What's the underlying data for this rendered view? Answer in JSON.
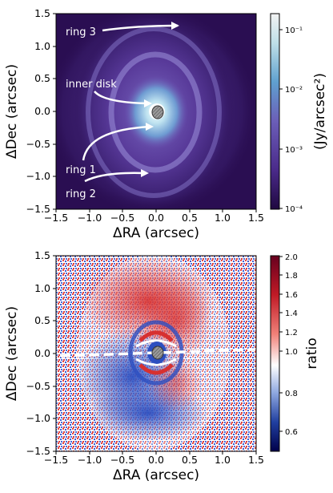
{
  "chart_data": [
    {
      "type": "heatmap",
      "xlabel": "ΔRA (arcsec)",
      "ylabel": "ΔDec (arcsec)",
      "xlim": [
        -1.5,
        1.5
      ],
      "ylim": [
        -1.5,
        1.5
      ],
      "xticks": [
        "−1.5",
        "−1.0",
        "−0.5",
        "0.0",
        "0.5",
        "1.0",
        "1.5"
      ],
      "yticks": [
        "1.5",
        "1.0",
        "0.5",
        "0.0",
        "−0.5",
        "−1.0",
        "−1.5"
      ],
      "colorbar": {
        "label": "(Jy/arcsec²)",
        "scale": "log",
        "range": [
          0.0001,
          0.2
        ],
        "ticks": [
          "10⁻¹",
          "10⁻²",
          "10⁻³",
          "10⁻⁴"
        ]
      },
      "annotations": [
        {
          "text": "ring 3",
          "x": -1.3,
          "y": 1.2
        },
        {
          "text": "inner disk",
          "x": -1.3,
          "y": 0.35
        },
        {
          "text": "ring 1",
          "x": -1.3,
          "y": -0.9
        },
        {
          "text": "ring 2",
          "x": -1.3,
          "y": -1.28
        }
      ]
    },
    {
      "type": "heatmap",
      "xlabel": "ΔRA (arcsec)",
      "ylabel": "ΔDec (arcsec)",
      "xlim": [
        -1.5,
        1.5
      ],
      "ylim": [
        -1.5,
        1.5
      ],
      "xticks": [
        "−1.5",
        "−1.0",
        "−0.5",
        "0.0",
        "0.5",
        "1.0",
        "1.5"
      ],
      "yticks": [
        "1.5",
        "1.0",
        "0.5",
        "0.0",
        "−0.5",
        "−1.0",
        "−1.5"
      ],
      "colorbar": {
        "label": "ratio",
        "scale": "linear",
        "range": [
          0.5,
          2.0
        ],
        "ticks": [
          "2.0",
          "1.8",
          "1.6",
          "1.4",
          "1.2",
          "1.0",
          "0.8",
          "0.6"
        ]
      }
    }
  ],
  "colors": {
    "panel1_background": "#2a0e52",
    "panel1_disk": "#6a4fb0",
    "panel1_inner": "#bfe3f0",
    "panel2_red": "#b2182b",
    "panel2_blue": "#2140a0",
    "panel2_background": "#00004a"
  },
  "icons": {
    "beam": "hatched-ellipse-icon"
  }
}
